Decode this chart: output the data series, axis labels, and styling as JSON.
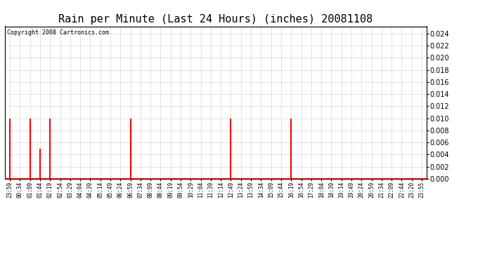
{
  "title": "Rain per Minute (Last 24 Hours) (inches) 20081108",
  "copyright": "Copyright 2008 Cartronics.com",
  "ylim": [
    0.0,
    0.0252
  ],
  "yticks": [
    0.0,
    0.002,
    0.004,
    0.006,
    0.008,
    0.01,
    0.012,
    0.014,
    0.016,
    0.018,
    0.02,
    0.022,
    0.024
  ],
  "bar_color": "#ff0000",
  "background_color": "#ffffff",
  "grid_color": "#bbbbbb",
  "x_labels": [
    "23:59",
    "00:34",
    "01:09",
    "01:44",
    "02:19",
    "02:54",
    "03:29",
    "04:04",
    "04:39",
    "05:14",
    "05:49",
    "06:24",
    "06:59",
    "07:34",
    "08:09",
    "08:44",
    "09:19",
    "09:54",
    "10:29",
    "11:04",
    "11:39",
    "12:14",
    "12:49",
    "13:24",
    "13:59",
    "14:34",
    "15:09",
    "15:44",
    "16:19",
    "16:54",
    "17:29",
    "18:04",
    "18:39",
    "19:14",
    "19:49",
    "20:24",
    "20:59",
    "21:34",
    "22:09",
    "22:44",
    "23:20",
    "23:55"
  ],
  "rain_indices": [
    0,
    2,
    3,
    4,
    12,
    22,
    28
  ],
  "rain_values": [
    0.01,
    0.01,
    0.005,
    0.01,
    0.01,
    0.01,
    0.01
  ],
  "title_fontsize": 11,
  "tick_fontsize": 5.5,
  "copyright_fontsize": 6,
  "ytick_fontsize": 7,
  "line_width": 1.5
}
